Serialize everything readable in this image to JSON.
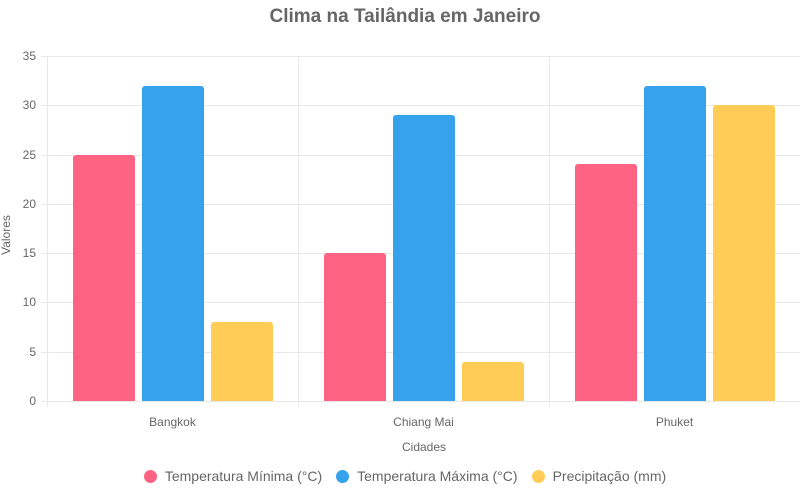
{
  "chart_data": {
    "type": "bar",
    "title": "Clima na Tailândia em Janeiro",
    "xlabel": "Cidades",
    "ylabel": "Valores",
    "categories": [
      "Bangkok",
      "Chiang Mai",
      "Phuket"
    ],
    "series": [
      {
        "name": "Temperatura Mínima (°C)",
        "color": "#ff6384",
        "values": [
          25,
          15,
          24
        ]
      },
      {
        "name": "Temperatura Máxima (°C)",
        "color": "#36a2eb",
        "values": [
          32,
          29,
          32
        ]
      },
      {
        "name": "Precipitação (mm)",
        "color": "#ffcd56",
        "values": [
          8,
          4,
          30
        ]
      }
    ],
    "ylim": [
      0,
      35
    ],
    "yticks": [
      0,
      5,
      10,
      15,
      20,
      25,
      30,
      35
    ],
    "grid": true,
    "legend_position": "bottom"
  }
}
